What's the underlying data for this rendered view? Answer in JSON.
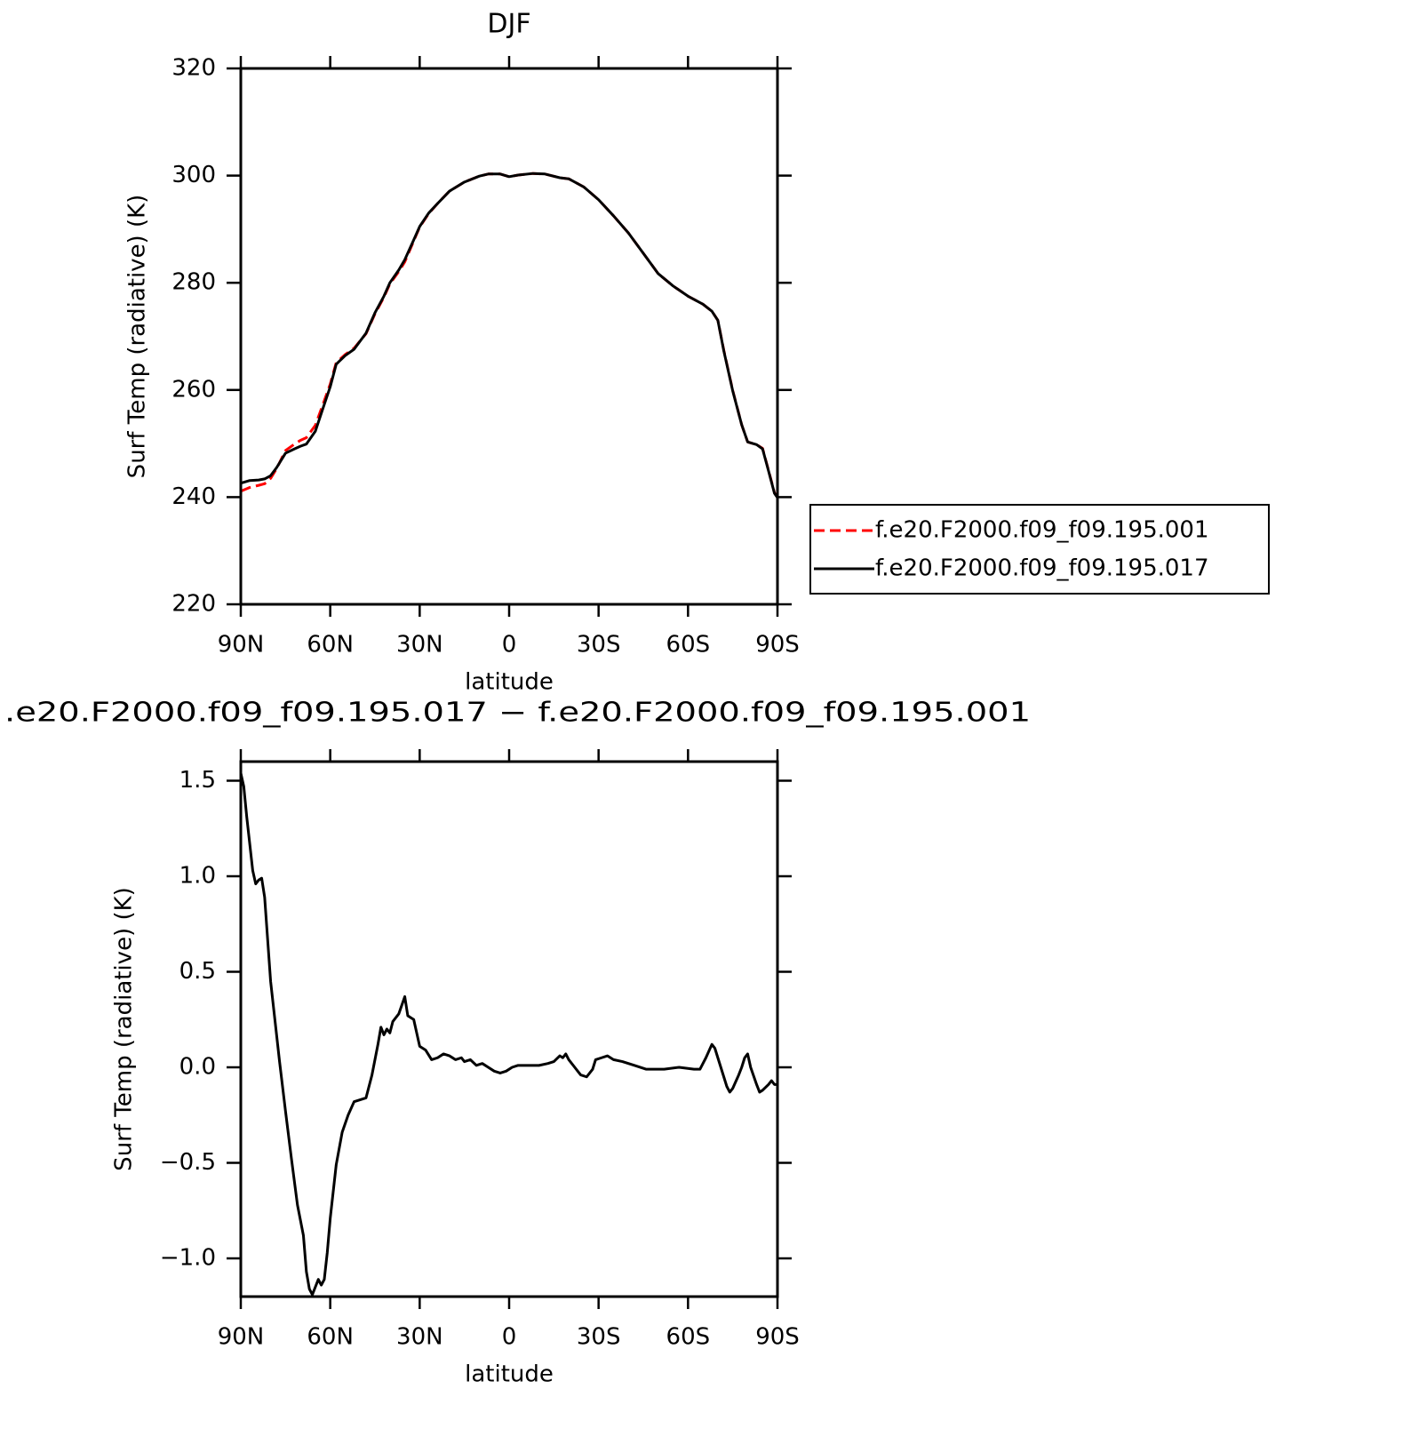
{
  "chart_data": [
    {
      "type": "line",
      "title": "DJF",
      "x_label": "latitude",
      "y_label": "Surf Temp (radiative) (K)",
      "xlim": [
        90,
        -90
      ],
      "xticks": [
        {
          "value": 90,
          "label": "90N"
        },
        {
          "value": 60,
          "label": "60N"
        },
        {
          "value": 30,
          "label": "30N"
        },
        0,
        {
          "value": -30,
          "label": "30S"
        },
        {
          "value": -60,
          "label": "60S"
        },
        {
          "value": -90,
          "label": "90S"
        }
      ],
      "ylim": [
        220,
        320
      ],
      "yticks": [
        220,
        240,
        260,
        280,
        300,
        320
      ],
      "legend": "right",
      "x": [
        90,
        87,
        84,
        82,
        80,
        78,
        75,
        72,
        70,
        68,
        65,
        62,
        60,
        58,
        55,
        52,
        48,
        45,
        42,
        40,
        37,
        35,
        32,
        30,
        27,
        24,
        20,
        15,
        10,
        7,
        3,
        0,
        -3,
        -8,
        -12,
        -17,
        -20,
        -25,
        -30,
        -35,
        -40,
        -45,
        -50,
        -55,
        -60,
        -65,
        -68,
        -70,
        -72,
        -75,
        -78,
        -80,
        -83,
        -85,
        -87,
        -89,
        -90
      ],
      "series": [
        {
          "name": "f.e20.F2000.f09_f09.195.001",
          "color": "#ff0000",
          "linestyle": "dashed",
          "values": [
            241.1,
            241.8,
            242.2,
            242.5,
            243.5,
            245.3,
            248.7,
            249.9,
            250.6,
            251.1,
            253.4,
            258.0,
            261.1,
            265.1,
            266.6,
            267.8,
            270.5,
            274.2,
            277.3,
            279.8,
            282.1,
            283.9,
            287.8,
            290.4,
            292.9,
            294.8,
            297.1,
            298.8,
            299.9,
            300.3,
            300.3,
            299.8,
            300.1,
            300.4,
            300.3,
            299.6,
            299.4,
            297.9,
            295.5,
            292.5,
            289.3,
            285.5,
            281.7,
            279.4,
            277.5,
            276.0,
            274.7,
            273.0,
            267.4,
            259.9,
            253.5,
            250.3,
            249.8,
            249.1,
            245.0,
            240.8,
            240.0
          ]
        },
        {
          "name": "f.e20.F2000.f09_f09.195.017",
          "color": "#000000",
          "linestyle": "solid",
          "values": [
            242.6,
            243.1,
            243.2,
            243.4,
            244.0,
            245.5,
            248.2,
            249.0,
            249.5,
            249.9,
            252.3,
            257.3,
            260.6,
            264.8,
            266.4,
            267.6,
            270.6,
            274.4,
            277.5,
            280.0,
            282.4,
            284.3,
            288.0,
            290.5,
            293.0,
            294.8,
            297.1,
            298.8,
            299.9,
            300.3,
            300.3,
            299.8,
            300.1,
            300.4,
            300.3,
            299.6,
            299.4,
            297.9,
            295.5,
            292.5,
            289.3,
            285.5,
            281.7,
            279.4,
            277.5,
            276.0,
            274.7,
            273.0,
            267.3,
            259.8,
            253.5,
            250.3,
            249.8,
            249.0,
            244.9,
            240.7,
            239.9
          ]
        }
      ]
    },
    {
      "type": "line",
      "title": ".e20.F2000.f09_f09.195.017 − f.e20.F2000.f09_f09.195.001",
      "x_label": "latitude",
      "y_label": "Surf Temp (radiative) (K)",
      "xlim": [
        90,
        -90
      ],
      "xticks": [
        {
          "value": 90,
          "label": "90N"
        },
        {
          "value": 60,
          "label": "60N"
        },
        {
          "value": 30,
          "label": "30N"
        },
        0,
        {
          "value": -30,
          "label": "30S"
        },
        {
          "value": -60,
          "label": "60S"
        },
        {
          "value": -90,
          "label": "90S"
        }
      ],
      "ylim": [
        -1.2,
        1.6
      ],
      "yticks": [
        {
          "value": -1.0,
          "label": "−1.0"
        },
        {
          "value": -0.5,
          "label": "−0.5"
        },
        {
          "value": 0,
          "label": "0.0"
        },
        0.5,
        {
          "value": 1.0,
          "label": "1.0"
        },
        1.5
      ],
      "x": [
        90,
        89,
        88,
        86,
        85,
        84,
        83,
        82,
        80,
        77,
        75,
        73,
        71,
        69,
        68,
        67,
        66,
        65,
        64,
        63,
        62,
        61,
        60,
        58,
        56,
        54,
        52,
        50,
        48,
        46,
        44,
        43,
        42,
        41,
        40,
        39,
        37,
        35,
        34,
        33,
        32,
        31,
        30,
        28,
        26,
        24,
        22,
        20,
        18,
        16,
        15,
        13,
        11,
        9,
        7,
        5,
        3,
        1,
        -1,
        -3,
        -5,
        -7,
        -10,
        -13,
        -15,
        -17,
        -18,
        -19,
        -20,
        -22,
        -23,
        -24,
        -26,
        -28,
        -29,
        -31,
        -33,
        -35,
        -38,
        -42,
        -46,
        -52,
        -57,
        -62,
        -64,
        -66,
        -68,
        -69,
        -71,
        -73,
        -74,
        -75,
        -77,
        -78,
        -79,
        -80,
        -81,
        -83,
        -84,
        -85,
        -87,
        -88,
        -89,
        -90
      ],
      "series": [
        {
          "color": "#000000",
          "linestyle": "solid",
          "values": [
            1.54,
            1.47,
            1.31,
            1.03,
            0.96,
            0.98,
            0.99,
            0.89,
            0.45,
            0.03,
            -0.23,
            -0.48,
            -0.72,
            -0.88,
            -1.07,
            -1.16,
            -1.19,
            -1.15,
            -1.11,
            -1.14,
            -1.11,
            -0.97,
            -0.79,
            -0.51,
            -0.34,
            -0.25,
            -0.18,
            -0.17,
            -0.16,
            -0.04,
            0.12,
            0.21,
            0.17,
            0.2,
            0.18,
            0.24,
            0.28,
            0.37,
            0.27,
            0.26,
            0.25,
            0.18,
            0.11,
            0.09,
            0.04,
            0.05,
            0.07,
            0.06,
            0.04,
            0.05,
            0.03,
            0.04,
            0.01,
            0.02,
            0.0,
            -0.02,
            -0.03,
            -0.02,
            0.0,
            0.01,
            0.01,
            0.01,
            0.01,
            0.02,
            0.03,
            0.06,
            0.05,
            0.07,
            0.04,
            0.0,
            -0.02,
            -0.04,
            -0.05,
            -0.01,
            0.04,
            0.05,
            0.06,
            0.04,
            0.03,
            0.01,
            -0.01,
            -0.01,
            0.0,
            -0.01,
            -0.01,
            0.05,
            0.12,
            0.1,
            0.0,
            -0.1,
            -0.13,
            -0.11,
            -0.04,
            0.0,
            0.05,
            0.07,
            0.0,
            -0.09,
            -0.13,
            -0.12,
            -0.09,
            -0.07,
            -0.09,
            -0.09
          ]
        }
      ]
    }
  ]
}
